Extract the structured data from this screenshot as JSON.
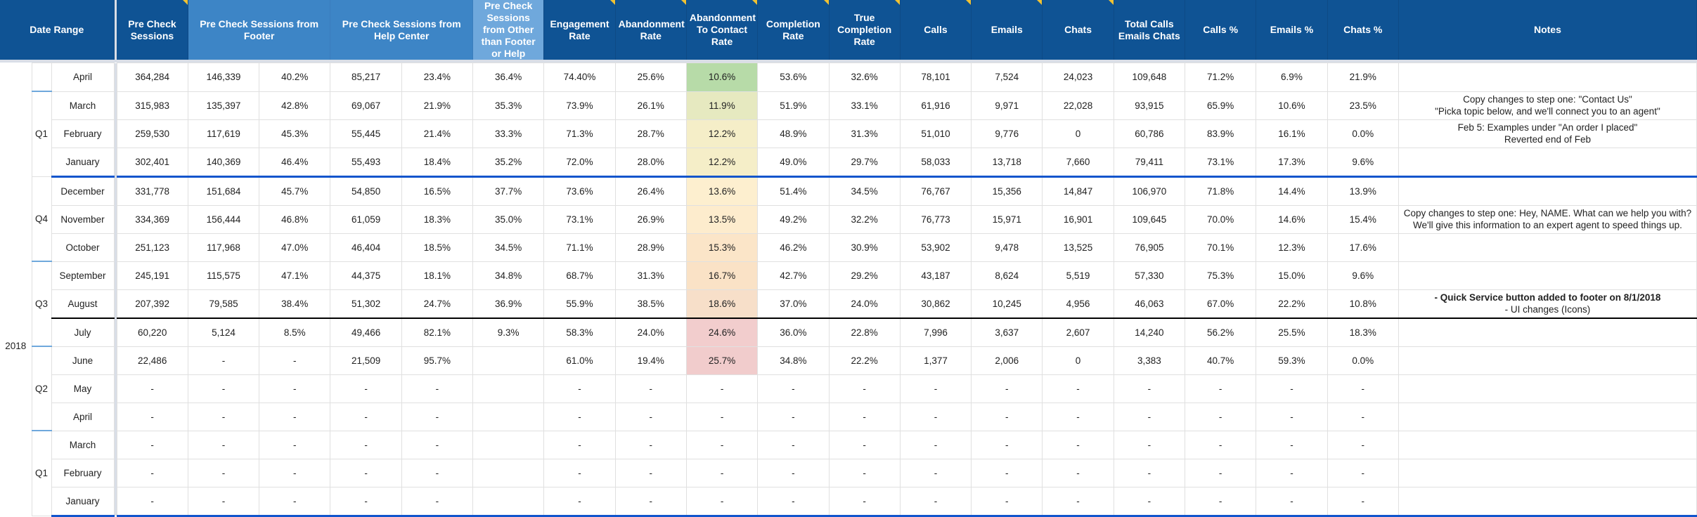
{
  "colors": {
    "header_dark": "#0f5394",
    "header_mid": "#3d85c6",
    "header_light": "#6fa8dc",
    "divider_blue": "#1155cc",
    "comment_marker": "#f1c232"
  },
  "header": {
    "date_range": "Date Range",
    "columns": [
      {
        "label": "Pre Check Sessions",
        "span": 1,
        "shade": "dark",
        "comment": true
      },
      {
        "label": "Pre Check Sessions from Footer",
        "span": 2,
        "shade": "mid",
        "comment": false
      },
      {
        "label": "Pre Check Sessions from Help Center",
        "span": 2,
        "shade": "mid",
        "comment": false
      },
      {
        "label": "Pre Check Sessions from Other than Footer or Help",
        "span": 1,
        "shade": "light",
        "comment": false
      },
      {
        "label": "Engagement Rate",
        "span": 1,
        "shade": "dark",
        "comment": true
      },
      {
        "label": "Abandonment Rate",
        "span": 1,
        "shade": "dark",
        "comment": true
      },
      {
        "label": "Abandonment To Contact Rate",
        "span": 1,
        "shade": "dark",
        "comment": true
      },
      {
        "label": "Completion Rate",
        "span": 1,
        "shade": "dark",
        "comment": true
      },
      {
        "label": "True Completion Rate",
        "span": 1,
        "shade": "dark",
        "comment": true
      },
      {
        "label": "Calls",
        "span": 1,
        "shade": "dark",
        "comment": true
      },
      {
        "label": "Emails",
        "span": 1,
        "shade": "dark",
        "comment": true
      },
      {
        "label": "Chats",
        "span": 1,
        "shade": "dark",
        "comment": true
      },
      {
        "label": "Total Calls Emails Chats",
        "span": 1,
        "shade": "dark",
        "comment": false
      },
      {
        "label": "Calls %",
        "span": 1,
        "shade": "dark",
        "comment": false
      },
      {
        "label": "Emails %",
        "span": 1,
        "shade": "dark",
        "comment": false
      },
      {
        "label": "Chats %",
        "span": 1,
        "shade": "dark",
        "comment": false
      },
      {
        "label": "Notes",
        "span": 1,
        "shade": "dark",
        "comment": false
      }
    ]
  },
  "rows": [
    {
      "year": "",
      "quarter": "",
      "month": "April",
      "values": [
        "364,284",
        "146,339",
        "40.2%",
        "85,217",
        "23.4%",
        "36.4%",
        "74.40%",
        "25.6%",
        "10.6%",
        "53.6%",
        "32.6%",
        "78,101",
        "7,524",
        "24,023",
        "109,648",
        "71.2%",
        "6.9%",
        "21.9%"
      ],
      "atc_color": "#b7dba8",
      "note": []
    },
    {
      "year": "",
      "quarter": "Q1",
      "month": "March",
      "values": [
        "315,983",
        "135,397",
        "42.8%",
        "69,067",
        "21.9%",
        "35.3%",
        "73.9%",
        "26.1%",
        "11.9%",
        "51.9%",
        "33.1%",
        "61,916",
        "9,971",
        "22,028",
        "93,915",
        "65.9%",
        "10.6%",
        "23.5%"
      ],
      "atc_color": "#e6e9c0",
      "note": [
        "Copy changes to step one: \"Contact Us\"",
        "\"Picka topic below, and we'll connect you to an agent\""
      ]
    },
    {
      "year": "",
      "quarter": "Q1",
      "month": "February",
      "values": [
        "259,530",
        "117,619",
        "45.3%",
        "55,445",
        "21.4%",
        "33.3%",
        "71.3%",
        "28.7%",
        "12.2%",
        "48.9%",
        "31.3%",
        "51,010",
        "9,776",
        "0",
        "60,786",
        "83.9%",
        "16.1%",
        "0.0%"
      ],
      "atc_color": "#f5eec8",
      "note": [
        "Feb 5: Examples under \"An order I placed\"",
        "Reverted end of Feb"
      ]
    },
    {
      "year": "",
      "quarter": "Q1",
      "month": "January",
      "values": [
        "302,401",
        "140,369",
        "46.4%",
        "55,493",
        "18.4%",
        "35.2%",
        "72.0%",
        "28.0%",
        "12.2%",
        "49.0%",
        "29.7%",
        "58,033",
        "13,718",
        "7,660",
        "79,411",
        "73.1%",
        "17.3%",
        "9.6%"
      ],
      "atc_color": "#f5eec8",
      "note": []
    },
    {
      "year": "2018",
      "quarter": "Q4",
      "month": "December",
      "values": [
        "331,778",
        "151,684",
        "45.7%",
        "54,850",
        "16.5%",
        "37.7%",
        "73.6%",
        "26.4%",
        "13.6%",
        "51.4%",
        "34.5%",
        "76,767",
        "15,356",
        "14,847",
        "106,970",
        "71.8%",
        "14.4%",
        "13.9%"
      ],
      "atc_color": "#fdefcf",
      "note": []
    },
    {
      "year": "2018",
      "quarter": "Q4",
      "month": "November",
      "values": [
        "334,369",
        "156,444",
        "46.8%",
        "61,059",
        "18.3%",
        "35.0%",
        "73.1%",
        "26.9%",
        "13.5%",
        "49.2%",
        "32.2%",
        "76,773",
        "15,971",
        "16,901",
        "109,645",
        "70.0%",
        "14.6%",
        "15.4%"
      ],
      "atc_color": "#fdeccd",
      "note": [
        "Copy changes to step one: Hey, NAME. What can we help you with?",
        "We'll give this information to an expert agent to speed things up."
      ]
    },
    {
      "year": "2018",
      "quarter": "Q4",
      "month": "October",
      "values": [
        "251,123",
        "117,968",
        "47.0%",
        "46,404",
        "18.5%",
        "34.5%",
        "71.1%",
        "28.9%",
        "15.3%",
        "46.2%",
        "30.9%",
        "53,902",
        "9,478",
        "13,525",
        "76,905",
        "70.1%",
        "12.3%",
        "17.6%"
      ],
      "atc_color": "#fbe5c8",
      "note": []
    },
    {
      "year": "2018",
      "quarter": "Q3",
      "month": "September",
      "values": [
        "245,191",
        "115,575",
        "47.1%",
        "44,375",
        "18.1%",
        "34.8%",
        "68.7%",
        "31.3%",
        "16.7%",
        "42.7%",
        "29.2%",
        "43,187",
        "8,624",
        "5,519",
        "57,330",
        "75.3%",
        "15.0%",
        "9.6%"
      ],
      "atc_color": "#fae2c6",
      "note": []
    },
    {
      "year": "2018",
      "quarter": "Q3",
      "month": "August",
      "values": [
        "207,392",
        "79,585",
        "38.4%",
        "51,302",
        "24.7%",
        "36.9%",
        "55.9%",
        "38.5%",
        "18.6%",
        "37.0%",
        "24.0%",
        "30,862",
        "10,245",
        "4,956",
        "46,063",
        "67.0%",
        "22.2%",
        "10.8%"
      ],
      "atc_color": "#f7dfc9",
      "note": [
        "- Quick Service button added to footer on 8/1/2018",
        "- UI changes (Icons)"
      ],
      "note_bold_first": true
    },
    {
      "year": "2018",
      "quarter": "Q3",
      "month": "July",
      "values": [
        "60,220",
        "5,124",
        "8.5%",
        "49,466",
        "82.1%",
        "9.3%",
        "58.3%",
        "24.0%",
        "24.6%",
        "36.0%",
        "22.8%",
        "7,996",
        "3,637",
        "2,607",
        "14,240",
        "56.2%",
        "25.5%",
        "18.3%"
      ],
      "atc_color": "#f2cdcd",
      "note": []
    },
    {
      "year": "2018",
      "quarter": "Q2",
      "month": "June",
      "values": [
        "22,486",
        "-",
        "-",
        "21,509",
        "95.7%",
        "",
        "61.0%",
        "19.4%",
        "25.7%",
        "34.8%",
        "22.2%",
        "1,377",
        "2,006",
        "0",
        "3,383",
        "40.7%",
        "59.3%",
        "0.0%"
      ],
      "atc_color": "#f1cccc",
      "note": []
    },
    {
      "year": "2018",
      "quarter": "Q2",
      "month": "May",
      "values": [
        "-",
        "-",
        "-",
        "-",
        "-",
        "",
        "-",
        "-",
        "-",
        "-",
        "-",
        "-",
        "-",
        "-",
        "-",
        "-",
        "-",
        "-"
      ],
      "atc_color": "",
      "note": []
    },
    {
      "year": "2018",
      "quarter": "Q2",
      "month": "April",
      "values": [
        "-",
        "-",
        "-",
        "-",
        "-",
        "",
        "-",
        "-",
        "-",
        "-",
        "-",
        "-",
        "-",
        "-",
        "-",
        "-",
        "-",
        "-"
      ],
      "atc_color": "",
      "note": []
    },
    {
      "year": "2018",
      "quarter": "Q1",
      "month": "March",
      "values": [
        "-",
        "-",
        "-",
        "-",
        "-",
        "",
        "-",
        "-",
        "-",
        "-",
        "-",
        "-",
        "-",
        "-",
        "-",
        "-",
        "-",
        "-"
      ],
      "atc_color": "",
      "note": []
    },
    {
      "year": "2018",
      "quarter": "Q1",
      "month": "February",
      "values": [
        "-",
        "-",
        "-",
        "-",
        "-",
        "",
        "-",
        "-",
        "-",
        "-",
        "-",
        "-",
        "-",
        "-",
        "-",
        "-",
        "-",
        "-"
      ],
      "atc_color": "",
      "note": []
    },
    {
      "year": "2018",
      "quarter": "Q1",
      "month": "January",
      "values": [
        "-",
        "-",
        "-",
        "-",
        "-",
        "",
        "-",
        "-",
        "-",
        "-",
        "-",
        "-",
        "-",
        "-",
        "-",
        "-",
        "-",
        "-"
      ],
      "atc_color": "",
      "note": []
    }
  ]
}
